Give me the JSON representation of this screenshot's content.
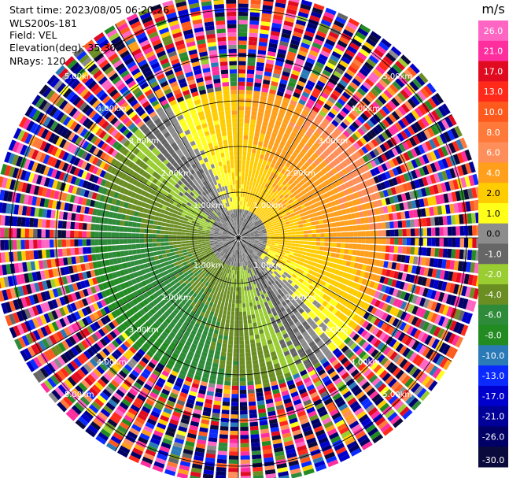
{
  "header": {
    "start_time": "Start time: 2023/08/05 06:20:26",
    "instrument": "WLS200s-181",
    "field": "Field: VEL",
    "elevation": "Elevation(deg): 35.30",
    "nrays": "NRays: 120"
  },
  "chart_data": {
    "type": "heatmap",
    "projection": "polar",
    "field": "VEL",
    "unit": "m/s",
    "nrays": 120,
    "range_rings_km": [
      1.0,
      2.0,
      3.0,
      4.0,
      5.0
    ],
    "range_labels": [
      "1.00km",
      "2.00km",
      "3.00km",
      "4.00km",
      "5.00km"
    ],
    "colorbar": {
      "label": "m/s",
      "ticks": [
        "26.0",
        "21.0",
        "17.0",
        "13.0",
        "10.0",
        "8.0",
        "6.0",
        "4.0",
        "2.0",
        "1.0",
        "0.0",
        "-1.0",
        "-2.0",
        "-4.0",
        "-6.0",
        "-8.0",
        "-10.0",
        "-13.0",
        "-17.0",
        "-21.0",
        "-26.0",
        "-30.0"
      ],
      "bins": [
        {
          "min": 26,
          "max": 30,
          "color": "#ff66c4"
        },
        {
          "min": 21,
          "max": 26,
          "color": "#ff2e9e"
        },
        {
          "min": 17,
          "max": 21,
          "color": "#e00b20"
        },
        {
          "min": 13,
          "max": 17,
          "color": "#ff2a1a"
        },
        {
          "min": 10,
          "max": 13,
          "color": "#ff5a1e"
        },
        {
          "min": 8,
          "max": 10,
          "color": "#ff7a3a"
        },
        {
          "min": 6,
          "max": 8,
          "color": "#ff8f5a"
        },
        {
          "min": 4,
          "max": 6,
          "color": "#ff9f1c"
        },
        {
          "min": 2,
          "max": 4,
          "color": "#ffcc00"
        },
        {
          "min": 1,
          "max": 2,
          "color": "#ffff19"
        },
        {
          "min": 0,
          "max": 1,
          "color": "#8c8c8c"
        },
        {
          "min": -1,
          "max": 0,
          "color": "#666666"
        },
        {
          "min": -2,
          "max": -1,
          "color": "#9acd32"
        },
        {
          "min": -4,
          "max": -2,
          "color": "#6b8e23"
        },
        {
          "min": -6,
          "max": -4,
          "color": "#2e8b3a"
        },
        {
          "min": -8,
          "max": -6,
          "color": "#228b22"
        },
        {
          "min": -10,
          "max": -8,
          "color": "#2a7ab8"
        },
        {
          "min": -13,
          "max": -10,
          "color": "#0a2aff"
        },
        {
          "min": -17,
          "max": -13,
          "color": "#0000cc"
        },
        {
          "min": -21,
          "max": -17,
          "color": "#000099"
        },
        {
          "min": -26,
          "max": -21,
          "color": "#000066"
        },
        {
          "min": -30,
          "max": -26,
          "color": "#0a0a3c"
        }
      ]
    }
  }
}
